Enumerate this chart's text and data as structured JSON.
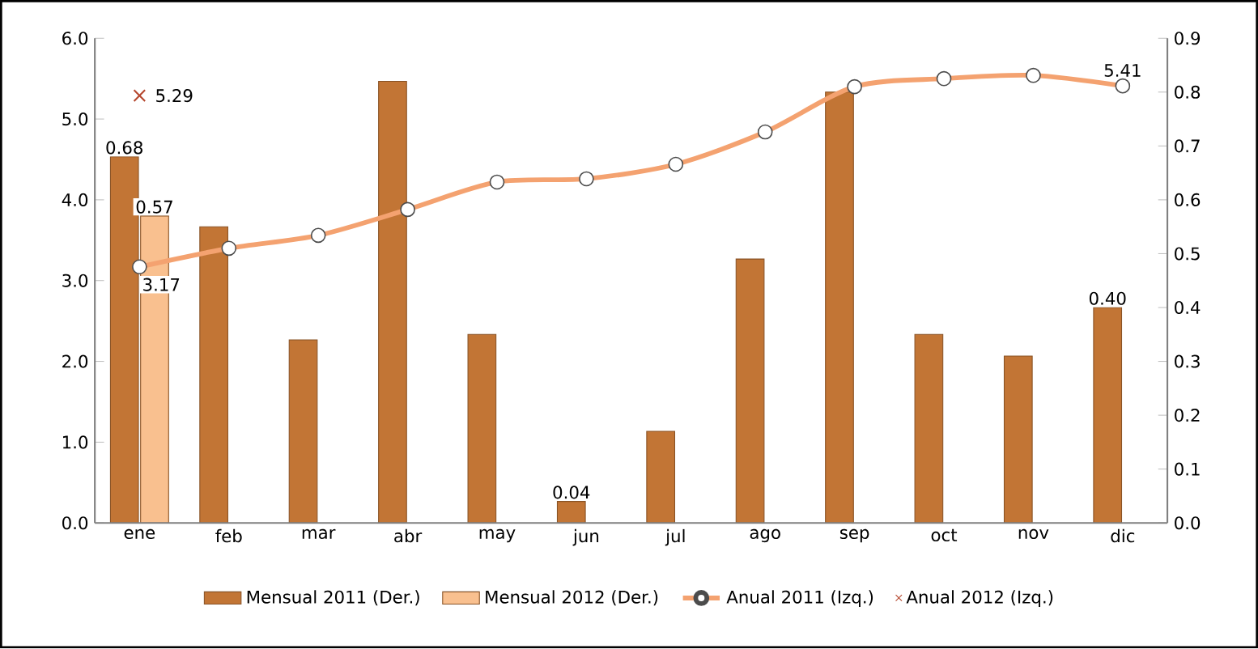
{
  "chart_data": {
    "type": "bar",
    "categories": [
      "ene",
      "feb",
      "mar",
      "abr",
      "may",
      "jun",
      "jul",
      "ago",
      "sep",
      "oct",
      "nov",
      "dic"
    ],
    "ylim": [
      0,
      6
    ],
    "yticks": [
      {
        "value": 0,
        "label": "0.0"
      },
      {
        "value": 1,
        "label": "1.0"
      },
      {
        "value": 2,
        "label": "2.0"
      },
      {
        "value": 3,
        "label": "3.0"
      },
      {
        "value": 4,
        "label": "4.0"
      },
      {
        "value": 5,
        "label": "5.0"
      },
      {
        "value": 6,
        "label": "6.0"
      }
    ],
    "y2lim": [
      0,
      0.9
    ],
    "y2ticks": [
      {
        "value": 0,
        "label": "0.0"
      },
      0.1,
      0.2,
      0.3,
      0.4,
      0.5,
      0.6,
      0.7,
      0.8,
      0.9
    ],
    "legend": "bottom",
    "series": [
      {
        "name": "Mensual 2011 (Der.)",
        "axis": "y2",
        "color": "#c27535",
        "values": [
          0.68,
          0.55,
          0.34,
          0.82,
          0.35,
          0.04,
          0.17,
          0.49,
          0.8,
          0.35,
          0.31,
          0.4
        ],
        "value_labels": [
          "0.68",
          null,
          null,
          null,
          null,
          "0.04",
          null,
          null,
          null,
          null,
          null,
          "0.40"
        ]
      },
      {
        "name": "Mensual 2012 (Der.)",
        "axis": "y2",
        "color": "#f9c08f",
        "values": [
          0.57,
          null,
          null,
          null,
          null,
          null,
          null,
          null,
          null,
          null,
          null,
          null
        ],
        "value_labels": [
          "0.57",
          null,
          null,
          null,
          null,
          null,
          null,
          null,
          null,
          null,
          null,
          null
        ]
      },
      {
        "name": "Anual 2011 (Izq.)",
        "type": "line",
        "color": "#f4a270",
        "marker": "circle",
        "values": [
          3.17,
          3.4,
          3.56,
          3.88,
          4.22,
          4.26,
          4.44,
          4.84,
          5.4,
          5.5,
          5.54,
          5.41
        ],
        "value_labels": [
          "3.17",
          null,
          null,
          null,
          null,
          null,
          null,
          null,
          null,
          null,
          null,
          "5.41"
        ]
      },
      {
        "name": "Anual 2012 (Izq.)",
        "type": "scatter",
        "color": "#b5472e",
        "marker": "cross",
        "values": [
          5.29,
          null,
          null,
          null,
          null,
          null,
          null,
          null,
          null,
          null,
          null,
          null
        ],
        "value_labels": [
          "5.29",
          null,
          null,
          null,
          null,
          null,
          null,
          null,
          null,
          null,
          null,
          null
        ]
      }
    ]
  }
}
